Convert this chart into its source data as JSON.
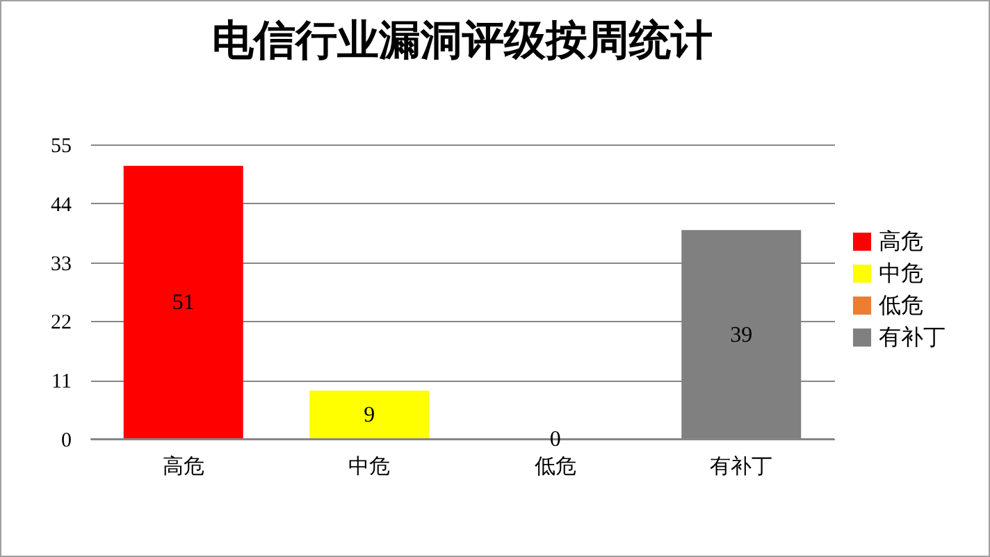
{
  "chart_data": {
    "type": "bar",
    "title": "电信行业漏洞评级按周统计",
    "categories": [
      "高危",
      "中危",
      "低危",
      "有补丁"
    ],
    "series": [
      {
        "name": "高危",
        "color": "#ff0000",
        "values": [
          51,
          null,
          null,
          null
        ]
      },
      {
        "name": "中危",
        "color": "#ffff00",
        "values": [
          null,
          9,
          null,
          null
        ]
      },
      {
        "name": "低危",
        "color": "#ed7d31",
        "values": [
          null,
          null,
          0,
          null
        ]
      },
      {
        "name": "有补丁",
        "color": "#808080",
        "values": [
          null,
          null,
          null,
          39
        ]
      }
    ],
    "ylim": [
      0,
      55
    ],
    "yticks": [
      0,
      11,
      22,
      33,
      44,
      55
    ],
    "grid": "y",
    "legend": "right",
    "data_labels": true
  }
}
